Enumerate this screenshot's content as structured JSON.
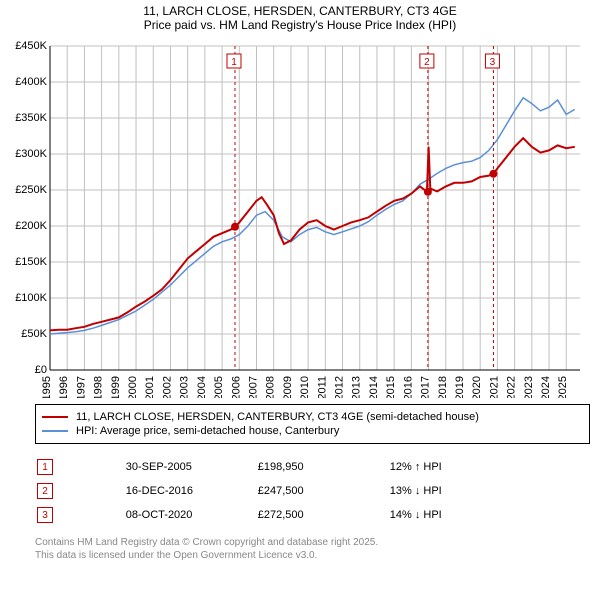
{
  "title_line1": "11, LARCH CLOSE, HERSDEN, CANTERBURY, CT3 4GE",
  "title_line2": "Price paid vs. HM Land Registry's House Price Index (HPI)",
  "chart": {
    "type": "line",
    "background_color": "#ffffff",
    "grid_color": "#c0c0c0",
    "axis_color": "#000000",
    "title_fontsize": 12,
    "label_fontsize": 11,
    "x_years": [
      1995,
      1996,
      1997,
      1998,
      1999,
      2000,
      2001,
      2002,
      2003,
      2004,
      2005,
      2006,
      2007,
      2008,
      2009,
      2010,
      2011,
      2012,
      2013,
      2014,
      2015,
      2016,
      2017,
      2018,
      2019,
      2020,
      2021,
      2022,
      2023,
      2024,
      2025
    ],
    "y_ticks": [
      0,
      50000,
      100000,
      150000,
      200000,
      250000,
      300000,
      350000,
      400000,
      450000
    ],
    "y_tick_labels": [
      "£0",
      "£50K",
      "£100K",
      "£150K",
      "£200K",
      "£250K",
      "£300K",
      "£350K",
      "£400K",
      "£450K"
    ],
    "ylim": [
      0,
      450000
    ],
    "xlim": [
      1995,
      2025.8
    ],
    "series": [
      {
        "name": "11, LARCH CLOSE, HERSDEN, CANTERBURY, CT3 4GE (semi-detached house)",
        "color": "#c00000",
        "line_width": 2,
        "points": [
          [
            1995.0,
            55000
          ],
          [
            1995.5,
            56000
          ],
          [
            1996.0,
            56000
          ],
          [
            1996.5,
            58000
          ],
          [
            1997.0,
            60000
          ],
          [
            1997.5,
            64000
          ],
          [
            1998.0,
            67000
          ],
          [
            1998.5,
            70000
          ],
          [
            1999.0,
            73000
          ],
          [
            1999.5,
            80000
          ],
          [
            2000.0,
            88000
          ],
          [
            2000.5,
            95000
          ],
          [
            2001.0,
            103000
          ],
          [
            2001.5,
            112000
          ],
          [
            2002.0,
            125000
          ],
          [
            2002.5,
            140000
          ],
          [
            2003.0,
            155000
          ],
          [
            2003.5,
            165000
          ],
          [
            2004.0,
            175000
          ],
          [
            2004.5,
            185000
          ],
          [
            2005.0,
            190000
          ],
          [
            2005.5,
            195000
          ],
          [
            2005.75,
            198950
          ],
          [
            2006.0,
            205000
          ],
          [
            2006.5,
            220000
          ],
          [
            2007.0,
            235000
          ],
          [
            2007.3,
            240000
          ],
          [
            2007.6,
            230000
          ],
          [
            2008.0,
            215000
          ],
          [
            2008.3,
            190000
          ],
          [
            2008.6,
            175000
          ],
          [
            2009.0,
            180000
          ],
          [
            2009.5,
            195000
          ],
          [
            2010.0,
            205000
          ],
          [
            2010.5,
            208000
          ],
          [
            2011.0,
            200000
          ],
          [
            2011.5,
            195000
          ],
          [
            2012.0,
            200000
          ],
          [
            2012.5,
            205000
          ],
          [
            2013.0,
            208000
          ],
          [
            2013.5,
            212000
          ],
          [
            2014.0,
            220000
          ],
          [
            2014.5,
            228000
          ],
          [
            2015.0,
            235000
          ],
          [
            2015.5,
            238000
          ],
          [
            2016.0,
            245000
          ],
          [
            2016.5,
            255000
          ],
          [
            2016.9,
            247500
          ],
          [
            2017.0,
            310000
          ],
          [
            2017.1,
            252000
          ],
          [
            2017.5,
            248000
          ],
          [
            2018.0,
            255000
          ],
          [
            2018.5,
            260000
          ],
          [
            2019.0,
            260000
          ],
          [
            2019.5,
            262000
          ],
          [
            2020.0,
            268000
          ],
          [
            2020.5,
            270000
          ],
          [
            2020.77,
            272500
          ],
          [
            2021.0,
            280000
          ],
          [
            2021.5,
            295000
          ],
          [
            2022.0,
            310000
          ],
          [
            2022.5,
            322000
          ],
          [
            2023.0,
            310000
          ],
          [
            2023.5,
            302000
          ],
          [
            2024.0,
            305000
          ],
          [
            2024.5,
            312000
          ],
          [
            2025.0,
            308000
          ],
          [
            2025.5,
            310000
          ]
        ]
      },
      {
        "name": "HPI: Average price, semi-detached house, Canterbury",
        "color": "#5b8fd6",
        "line_width": 1.5,
        "points": [
          [
            1995.0,
            50000
          ],
          [
            1995.5,
            51000
          ],
          [
            1996.0,
            52000
          ],
          [
            1996.5,
            53000
          ],
          [
            1997.0,
            55000
          ],
          [
            1997.5,
            58000
          ],
          [
            1998.0,
            62000
          ],
          [
            1998.5,
            66000
          ],
          [
            1999.0,
            70000
          ],
          [
            1999.5,
            76000
          ],
          [
            2000.0,
            82000
          ],
          [
            2000.5,
            90000
          ],
          [
            2001.0,
            98000
          ],
          [
            2001.5,
            108000
          ],
          [
            2002.0,
            118000
          ],
          [
            2002.5,
            130000
          ],
          [
            2003.0,
            142000
          ],
          [
            2003.5,
            152000
          ],
          [
            2004.0,
            162000
          ],
          [
            2004.5,
            172000
          ],
          [
            2005.0,
            178000
          ],
          [
            2005.5,
            182000
          ],
          [
            2006.0,
            188000
          ],
          [
            2006.5,
            200000
          ],
          [
            2007.0,
            215000
          ],
          [
            2007.5,
            220000
          ],
          [
            2008.0,
            208000
          ],
          [
            2008.5,
            185000
          ],
          [
            2009.0,
            178000
          ],
          [
            2009.5,
            188000
          ],
          [
            2010.0,
            195000
          ],
          [
            2010.5,
            198000
          ],
          [
            2011.0,
            192000
          ],
          [
            2011.5,
            188000
          ],
          [
            2012.0,
            192000
          ],
          [
            2012.5,
            196000
          ],
          [
            2013.0,
            200000
          ],
          [
            2013.5,
            206000
          ],
          [
            2014.0,
            215000
          ],
          [
            2014.5,
            223000
          ],
          [
            2015.0,
            230000
          ],
          [
            2015.5,
            235000
          ],
          [
            2016.0,
            245000
          ],
          [
            2016.5,
            258000
          ],
          [
            2017.0,
            265000
          ],
          [
            2017.5,
            273000
          ],
          [
            2018.0,
            280000
          ],
          [
            2018.5,
            285000
          ],
          [
            2019.0,
            288000
          ],
          [
            2019.5,
            290000
          ],
          [
            2020.0,
            295000
          ],
          [
            2020.5,
            305000
          ],
          [
            2021.0,
            320000
          ],
          [
            2021.5,
            340000
          ],
          [
            2022.0,
            360000
          ],
          [
            2022.5,
            378000
          ],
          [
            2023.0,
            370000
          ],
          [
            2023.5,
            360000
          ],
          [
            2024.0,
            365000
          ],
          [
            2024.5,
            375000
          ],
          [
            2025.0,
            355000
          ],
          [
            2025.5,
            362000
          ]
        ]
      }
    ],
    "markers": [
      {
        "n": "1",
        "year": 2005.75,
        "value": 198950
      },
      {
        "n": "2",
        "year": 2016.96,
        "value": 247500
      },
      {
        "n": "3",
        "year": 2020.77,
        "value": 272500
      }
    ],
    "marker_line_color": "#c00000",
    "marker_dot_color": "#c00000"
  },
  "legend": {
    "items": [
      {
        "color": "#c00000",
        "label": "11, LARCH CLOSE, HERSDEN, CANTERBURY, CT3 4GE (semi-detached house)"
      },
      {
        "color": "#5b8fd6",
        "label": "HPI: Average price, semi-detached house, Canterbury"
      }
    ]
  },
  "marker_rows": [
    {
      "n": "1",
      "date": "30-SEP-2005",
      "price": "£198,950",
      "delta": "12% ↑ HPI"
    },
    {
      "n": "2",
      "date": "16-DEC-2016",
      "price": "£247,500",
      "delta": "13% ↓ HPI"
    },
    {
      "n": "3",
      "date": "08-OCT-2020",
      "price": "£272,500",
      "delta": "14% ↓ HPI"
    }
  ],
  "footnote_line1": "Contains HM Land Registry data © Crown copyright and database right 2025.",
  "footnote_line2": "This data is licensed under the Open Government Licence v3.0."
}
